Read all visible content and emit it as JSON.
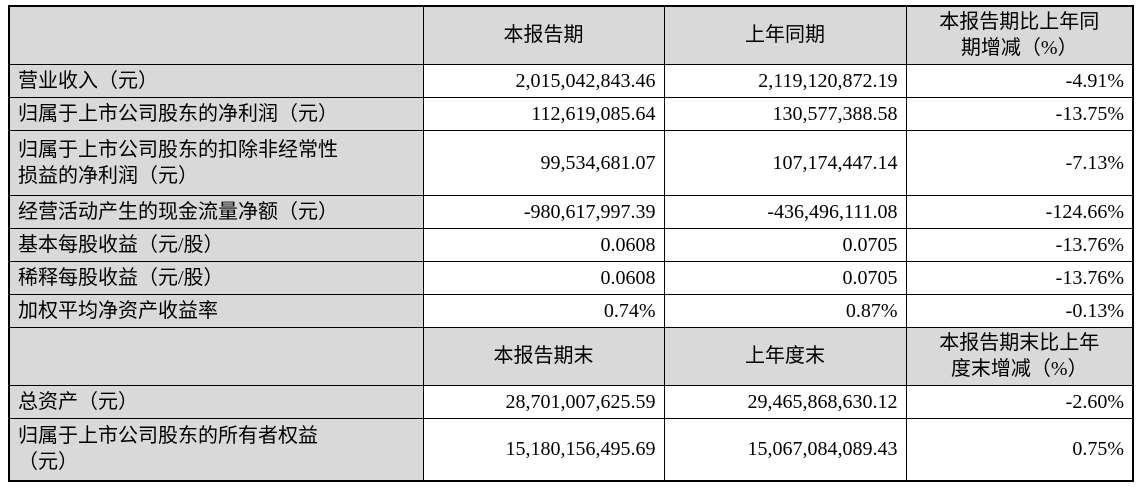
{
  "colors": {
    "header_bg": "#d9d9d9",
    "label_bg": "#d9d9d9",
    "cell_bg": "#ffffff",
    "border": "#000000",
    "text": "#000000"
  },
  "table": {
    "sections": [
      {
        "headers": {
          "blank": "",
          "current": "本报告期",
          "prior": "上年同期",
          "change": "本报告期比上年同\n期增减（%）"
        },
        "rows": [
          {
            "label": "营业收入（元）",
            "current": "2,015,042,843.46",
            "prior": "2,119,120,872.19",
            "change": "-4.91%"
          },
          {
            "label": "归属于上市公司股东的净利润（元）",
            "current": "112,619,085.64",
            "prior": "130,577,388.58",
            "change": "-13.75%"
          },
          {
            "label": "归属于上市公司股东的扣除非经常性\n损益的净利润（元）",
            "current": "99,534,681.07",
            "prior": "107,174,447.14",
            "change": "-7.13%"
          },
          {
            "label": "经营活动产生的现金流量净额（元）",
            "current": "-980,617,997.39",
            "prior": "-436,496,111.08",
            "change": "-124.66%"
          },
          {
            "label": "基本每股收益（元/股）",
            "current": "0.0608",
            "prior": "0.0705",
            "change": "-13.76%"
          },
          {
            "label": "稀释每股收益（元/股）",
            "current": "0.0608",
            "prior": "0.0705",
            "change": "-13.76%"
          },
          {
            "label": "加权平均净资产收益率",
            "current": "0.74%",
            "prior": "0.87%",
            "change": "-0.13%"
          }
        ]
      },
      {
        "headers": {
          "blank": "",
          "current": "本报告期末",
          "prior": "上年度末",
          "change": "本报告期末比上年\n度末增减（%）"
        },
        "rows": [
          {
            "label": "总资产（元）",
            "current": "28,701,007,625.59",
            "prior": "29,465,868,630.12",
            "change": "-2.60%"
          },
          {
            "label": "归属于上市公司股东的所有者权益\n（元）",
            "current": "15,180,156,495.69",
            "prior": "15,067,084,089.43",
            "change": "0.75%"
          }
        ]
      }
    ]
  }
}
